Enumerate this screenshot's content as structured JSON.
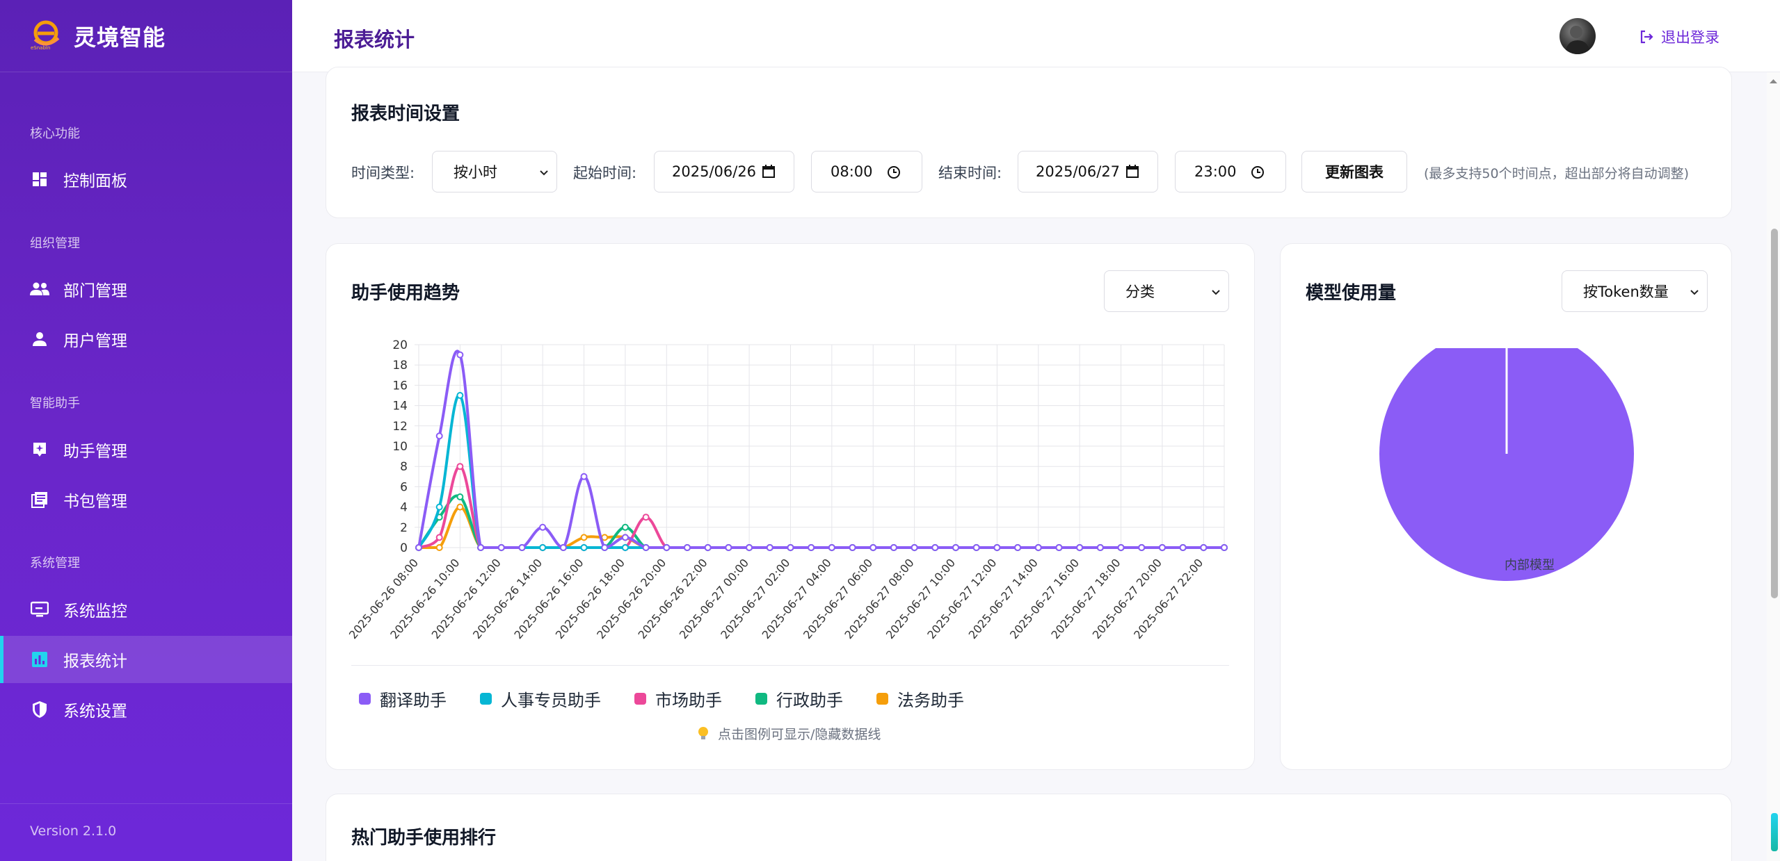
{
  "brand": {
    "name": "灵境智能",
    "logo_caption": "eSnabIn"
  },
  "sidebar": {
    "sections": [
      {
        "label": "核心功能"
      },
      {
        "label": "组织管理"
      },
      {
        "label": "智能助手"
      },
      {
        "label": "系统管理"
      }
    ],
    "items": [
      {
        "label": "控制面板",
        "icon": "dashboard-icon"
      },
      {
        "label": "部门管理",
        "icon": "group-icon"
      },
      {
        "label": "用户管理",
        "icon": "user-icon"
      },
      {
        "label": "助手管理",
        "icon": "assistant-icon"
      },
      {
        "label": "书包管理",
        "icon": "library-icon"
      },
      {
        "label": "系统监控",
        "icon": "monitor-icon"
      },
      {
        "label": "报表统计",
        "icon": "bar-chart-icon",
        "active": true
      },
      {
        "label": "系统设置",
        "icon": "shield-icon"
      }
    ],
    "version": "Version 2.1.0"
  },
  "header": {
    "title": "报表统计",
    "logout_label": "退出登录"
  },
  "time_settings": {
    "title": "报表时间设置",
    "time_type_label": "时间类型:",
    "time_type_value": "按小时",
    "start_label": "起始时间:",
    "start_date": "2025/06/26",
    "start_time": "08:00",
    "end_label": "结束时间:",
    "end_date": "2025/06/27",
    "end_time": "23:00",
    "update_button": "更新图表",
    "hint": "(最多支持50个时间点，超出部分将自动调整)"
  },
  "trend_card": {
    "title": "助手使用趋势",
    "filter_value": "分类",
    "legend_hint": "点击图例可显示/隐藏数据线"
  },
  "model_card": {
    "title": "模型使用量",
    "filter_value": "按Token数量"
  },
  "ranking_card": {
    "title": "热门助手使用排行"
  },
  "colors": {
    "accent": "#6d28d9",
    "translate": "#8b5cf6",
    "hr": "#06b6d4",
    "market": "#ec4899",
    "admin": "#10b981",
    "legal": "#f59e0b",
    "pie": "#8b5cf6"
  },
  "chart_data": [
    {
      "type": "line",
      "title": "助手使用趋势",
      "ylim": [
        0,
        20
      ],
      "yticks": [
        0,
        2,
        4,
        6,
        8,
        10,
        12,
        14,
        16,
        18,
        20
      ],
      "x": [
        "2025-06-26 08:00",
        "2025-06-26 09:00",
        "2025-06-26 10:00",
        "2025-06-26 11:00",
        "2025-06-26 12:00",
        "2025-06-26 13:00",
        "2025-06-26 14:00",
        "2025-06-26 15:00",
        "2025-06-26 16:00",
        "2025-06-26 17:00",
        "2025-06-26 18:00",
        "2025-06-26 19:00",
        "2025-06-26 20:00",
        "2025-06-26 21:00",
        "2025-06-26 22:00",
        "2025-06-26 23:00",
        "2025-06-27 00:00",
        "2025-06-27 01:00",
        "2025-06-27 02:00",
        "2025-06-27 03:00",
        "2025-06-27 04:00",
        "2025-06-27 05:00",
        "2025-06-27 06:00",
        "2025-06-27 07:00",
        "2025-06-27 08:00",
        "2025-06-27 09:00",
        "2025-06-27 10:00",
        "2025-06-27 11:00",
        "2025-06-27 12:00",
        "2025-06-27 13:00",
        "2025-06-27 14:00",
        "2025-06-27 15:00",
        "2025-06-27 16:00",
        "2025-06-27 17:00",
        "2025-06-27 18:00",
        "2025-06-27 19:00",
        "2025-06-27 20:00",
        "2025-06-27 21:00",
        "2025-06-27 22:00",
        "2025-06-27 23:00"
      ],
      "xtick_labels": [
        "2025-06-26 08:00",
        "2025-06-26 10:00",
        "2025-06-26 12:00",
        "2025-06-26 14:00",
        "2025-06-26 16:00",
        "2025-06-26 18:00",
        "2025-06-26 20:00",
        "2025-06-26 22:00",
        "2025-06-27 00:00",
        "2025-06-27 02:00",
        "2025-06-27 04:00",
        "2025-06-27 06:00",
        "2025-06-27 08:00",
        "2025-06-27 10:00",
        "2025-06-27 12:00",
        "2025-06-27 14:00",
        "2025-06-27 16:00",
        "2025-06-27 18:00",
        "2025-06-27 20:00",
        "2025-06-27 22:00"
      ],
      "grid": true,
      "legend_position": "bottom",
      "series": [
        {
          "name": "翻译助手",
          "color": "#8b5cf6",
          "values": [
            0,
            11,
            19,
            0,
            0,
            0,
            2,
            0,
            7,
            0,
            1,
            0,
            0,
            0,
            0,
            0,
            0,
            0,
            0,
            0,
            0,
            0,
            0,
            0,
            0,
            0,
            0,
            0,
            0,
            0,
            0,
            0,
            0,
            0,
            0,
            0,
            0,
            0,
            0,
            0
          ]
        },
        {
          "name": "人事专员助手",
          "color": "#06b6d4",
          "values": [
            0,
            4,
            15,
            0,
            0,
            0,
            0,
            0,
            0,
            0,
            0,
            0,
            0,
            0,
            0,
            0,
            0,
            0,
            0,
            0,
            0,
            0,
            0,
            0,
            0,
            0,
            0,
            0,
            0,
            0,
            0,
            0,
            0,
            0,
            0,
            0,
            0,
            0,
            0,
            0
          ]
        },
        {
          "name": "市场助手",
          "color": "#ec4899",
          "values": [
            0,
            1,
            8,
            0,
            0,
            0,
            0,
            0,
            0,
            0,
            0,
            3,
            0,
            0,
            0,
            0,
            0,
            0,
            0,
            0,
            0,
            0,
            0,
            0,
            0,
            0,
            0,
            0,
            0,
            0,
            0,
            0,
            0,
            0,
            0,
            0,
            0,
            0,
            0,
            0
          ]
        },
        {
          "name": "行政助手",
          "color": "#10b981",
          "values": [
            0,
            3,
            5,
            0,
            0,
            0,
            0,
            0,
            0,
            0,
            2,
            0,
            0,
            0,
            0,
            0,
            0,
            0,
            0,
            0,
            0,
            0,
            0,
            0,
            0,
            0,
            0,
            0,
            0,
            0,
            0,
            0,
            0,
            0,
            0,
            0,
            0,
            0,
            0,
            0
          ]
        },
        {
          "name": "法务助手",
          "color": "#f59e0b",
          "values": [
            0,
            0,
            4,
            0,
            0,
            0,
            0,
            0,
            1,
            1,
            1,
            0,
            0,
            0,
            0,
            0,
            0,
            0,
            0,
            0,
            0,
            0,
            0,
            0,
            0,
            0,
            0,
            0,
            0,
            0,
            0,
            0,
            0,
            0,
            0,
            0,
            0,
            0,
            0,
            0
          ]
        }
      ]
    },
    {
      "type": "pie",
      "title": "模型使用量",
      "legend_position": "bottom",
      "slices": [
        {
          "name": "内部模型",
          "value": 100,
          "color": "#8b5cf6"
        }
      ]
    }
  ]
}
